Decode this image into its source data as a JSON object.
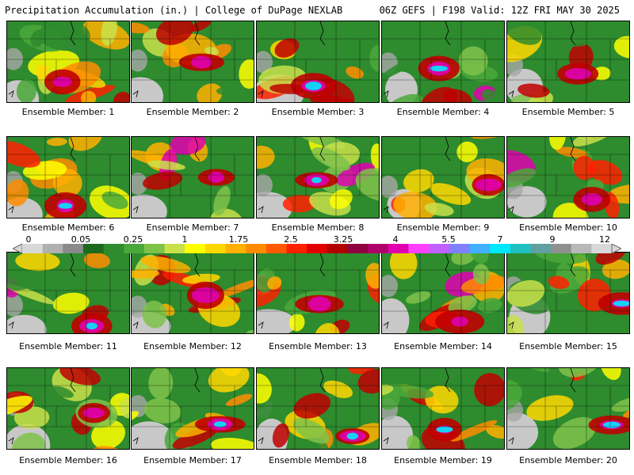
{
  "header": {
    "title": "Precipitation Accumulation (in.) | College of DuPage NEXLAB",
    "run_info": "06Z GEFS | F198 Valid: 12Z FRI MAY 30 2025"
  },
  "member_prefix": "Ensemble Member:",
  "members": [
    {
      "label": "Ensemble Member: 1"
    },
    {
      "label": "Ensemble Member: 2"
    },
    {
      "label": "Ensemble Member: 3"
    },
    {
      "label": "Ensemble Member: 4"
    },
    {
      "label": "Ensemble Member: 5"
    },
    {
      "label": "Ensemble Member: 6"
    },
    {
      "label": "Ensemble Member: 7"
    },
    {
      "label": "Ensemble Member: 8"
    },
    {
      "label": "Ensemble Member: 9"
    },
    {
      "label": "Ensemble Member: 10"
    },
    {
      "label": "Ensemble Member: 11"
    },
    {
      "label": "Ensemble Member: 12"
    },
    {
      "label": "Ensemble Member: 13"
    },
    {
      "label": "Ensemble Member: 14"
    },
    {
      "label": "Ensemble Member: 15"
    },
    {
      "label": "Ensemble Member: 16"
    },
    {
      "label": "Ensemble Member: 17"
    },
    {
      "label": "Ensemble Member: 18"
    },
    {
      "label": "Ensemble Member: 19"
    },
    {
      "label": "Ensemble Member: 20"
    }
  ],
  "colorbar": {
    "labels": [
      "0",
      "0.05",
      "0.25",
      "1",
      "1.75",
      "2.5",
      "3.25",
      "4",
      "5.5",
      "7",
      "9",
      "12"
    ],
    "colors": [
      "#d8d8d8",
      "#b0b0b0",
      "#8a8a8a",
      "#1c6b1c",
      "#2e8b2e",
      "#4aa83a",
      "#7fc24a",
      "#c8e04a",
      "#ffff00",
      "#ffd700",
      "#ffb000",
      "#ff8c00",
      "#ff5a00",
      "#ff2000",
      "#e00000",
      "#b00000",
      "#900040",
      "#b0006a",
      "#e000b0",
      "#ff40ff",
      "#c060ff",
      "#8080ff",
      "#40b0ff",
      "#00e8ff",
      "#20c0c0",
      "#60a0a0",
      "#909090",
      "#b8b8b8",
      "#d8d8d8"
    ]
  }
}
